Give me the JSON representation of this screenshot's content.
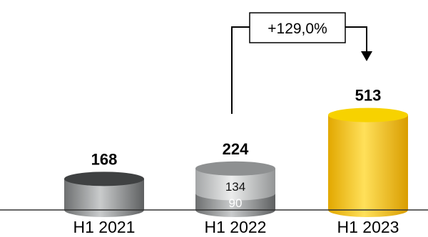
{
  "chart_data": {
    "type": "bar",
    "categories": [
      "H1 2021",
      "H1 2022",
      "H1 2023"
    ],
    "totals": [
      168,
      224,
      513
    ],
    "series": [
      {
        "values": [
          168,
          90,
          513
        ]
      },
      {
        "values": [
          0,
          134,
          0
        ]
      }
    ],
    "segment_labels": {
      "H1 2022": [
        "90",
        "134"
      ]
    },
    "total_labels": [
      "168",
      "224",
      "513"
    ],
    "annotation": {
      "text": "+129,0%",
      "from": "H1 2022",
      "to": "H1 2023"
    },
    "bar_colors": [
      "#8a8c8d",
      "#b9bbbb",
      "#f2c200"
    ],
    "accent": "#f2c200"
  }
}
